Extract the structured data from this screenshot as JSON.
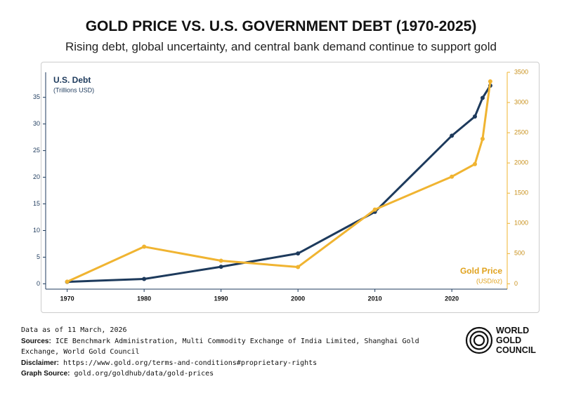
{
  "chart_data": {
    "type": "line",
    "title": "GOLD PRICE VS. U.S. GOVERNMENT DEBT (1970-2025)",
    "subtitle": "Rising debt, global uncertainty, and central bank demand continue to support gold",
    "y_axis_label": {
      "title": "U.S. Debt",
      "unit": "(Trillions USD)"
    },
    "y2_axis_label": {
      "title": "Gold Price",
      "unit": "(USD/oz)"
    },
    "x": [
      1970,
      1980,
      1990,
      2000,
      2010,
      2020,
      2023,
      2024,
      2025
    ],
    "series": [
      {
        "name": "U.S. Debt",
        "color": "#1d3a5c",
        "values": [
          0.37,
          0.91,
          3.2,
          5.7,
          13.5,
          27.8,
          31.4,
          34.9,
          37.2
        ]
      },
      {
        "name": "Gold Price",
        "color": "#f0b431",
        "axis": "y2",
        "values": [
          35,
          614,
          382,
          278,
          1228,
          1773,
          1981,
          2399,
          3349
        ]
      }
    ],
    "xlim": [
      1967.2,
      2027.2
    ],
    "xticks": [
      1970,
      1980,
      1990,
      2000,
      2010,
      2020
    ],
    "ylim": [
      -1,
      39.7
    ],
    "yticks": [
      0,
      5,
      10,
      15,
      20,
      25,
      30,
      35
    ],
    "y2lim": [
      -88,
      3500
    ],
    "y2ticks": [
      0,
      500,
      1000,
      1500,
      2000,
      2500,
      3000,
      3500
    ],
    "grid": false
  },
  "footer": {
    "date": "Data as of 11 March, 2026",
    "sources": {
      "label": "Sources:",
      "text": "ICE Benchmark Administration, Multi Commodity Exchange of India Limited, Shanghai Gold Exchange, World Gold Council"
    },
    "disclaimer": {
      "label": "Disclaimer:",
      "text": "https://www.gold.org/terms-and-conditions#proprietary-rights"
    },
    "graph_source": {
      "label": "Graph Source:",
      "text": "gold.org/goldhub/data/gold-prices"
    }
  },
  "logo": {
    "lines": [
      "WORLD",
      "GOLD",
      "COUNCIL"
    ]
  }
}
